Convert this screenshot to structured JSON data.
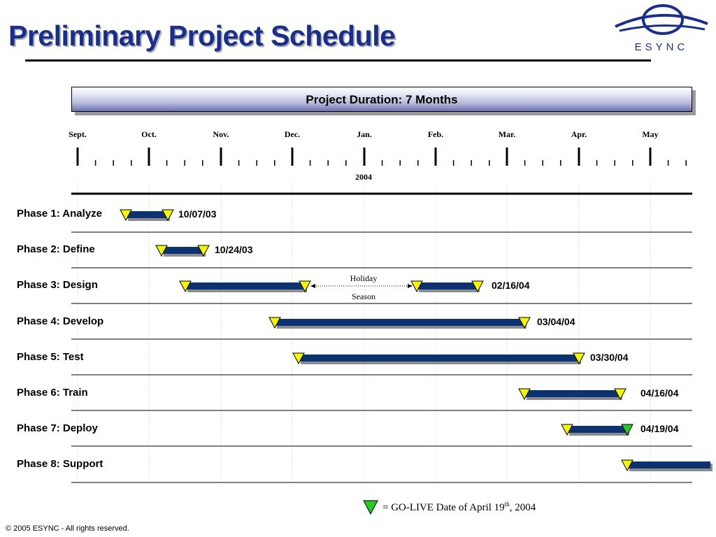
{
  "title": "Preliminary Project Schedule",
  "logo_text": "ESYNC",
  "duration_banner": "Project Duration:  7 Months",
  "months": [
    "Sept.",
    "Oct.",
    "Nov.",
    "Dec.",
    "Jan.",
    "Feb.",
    "Mar.",
    "Apr.",
    "May"
  ],
  "year_label": "2004",
  "phases": [
    {
      "label": "Phase 1: Analyze",
      "end_date": "10/07/03"
    },
    {
      "label": "Phase 2: Define",
      "end_date": "10/24/03"
    },
    {
      "label": "Phase 3: Design",
      "end_date": "02/16/04"
    },
    {
      "label": "Phase 4: Develop",
      "end_date": "03/04/04"
    },
    {
      "label": "Phase 5: Test",
      "end_date": "03/30/04"
    },
    {
      "label": "Phase 6: Train",
      "end_date": "04/16/04"
    },
    {
      "label": "Phase 7: Deploy",
      "end_date": "04/19/04"
    },
    {
      "label": "Phase 8: Support",
      "end_date": ""
    }
  ],
  "holiday_label": {
    "line1": "Holiday",
    "line2": "Season"
  },
  "legend": {
    "prefix": "= GO-LIVE Date of April 19",
    "sup": "th",
    "suffix": ", 2004"
  },
  "footer": "© 2005 ESYNC - All rights reserved.",
  "colors": {
    "title": "#1a2f8c",
    "bar": "#0c3370",
    "bar_shadow": "#8c8c8c",
    "marker": "#f5f500",
    "golive_marker": "#22cc22"
  },
  "icons": {
    "milestone": "triangle-down",
    "golive": "triangle-down-green"
  }
}
